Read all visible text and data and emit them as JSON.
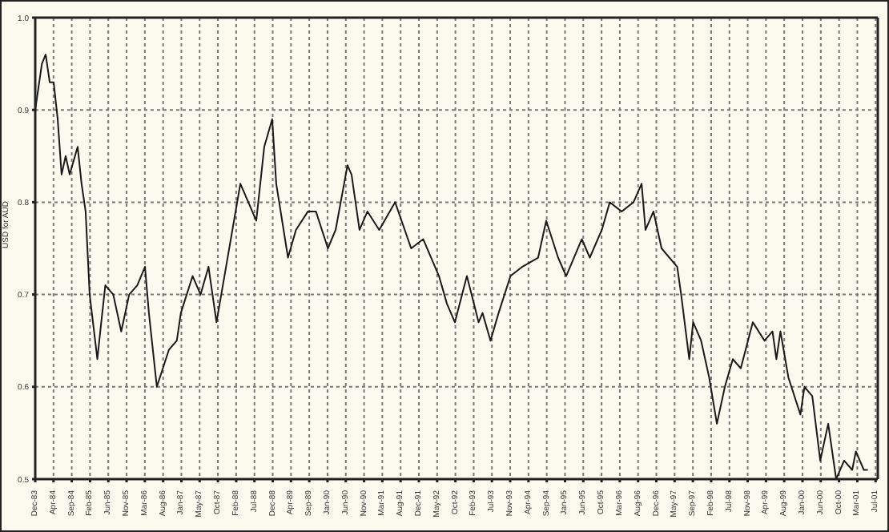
{
  "chart_data": {
    "type": "line",
    "ylabel": "USD for AUD",
    "color": "#1a1a1a",
    "grid": true,
    "legend": false,
    "marker": "none",
    "line_style": "solid",
    "ylim": [
      0.5,
      1.0
    ],
    "yticks": [
      0.5,
      0.6,
      0.7,
      0.8,
      0.9,
      {
        "value": 1.0,
        "label": "1.0"
      }
    ],
    "xlim": [
      "1983-12-12",
      "2001-08-16"
    ],
    "xticks": [
      {
        "value": "1983-12-12",
        "label": "Dec-83"
      },
      {
        "value": "1984-04-30",
        "label": "Apr-84"
      },
      {
        "value": "1984-09-17",
        "label": "Sep-84"
      },
      {
        "value": "1985-02-04",
        "label": "Feb-85"
      },
      {
        "value": "1985-06-24",
        "label": "Jun-85"
      },
      {
        "value": "1985-11-11",
        "label": "Nov-85"
      },
      {
        "value": "1986-03-31",
        "label": "Mar-86"
      },
      {
        "value": "1986-08-18",
        "label": "Aug-86"
      },
      {
        "value": "1987-01-05",
        "label": "Jan-87"
      },
      {
        "value": "1987-05-25",
        "label": "May-87"
      },
      {
        "value": "1987-10-12",
        "label": "Oct-87"
      },
      {
        "value": "1988-02-29",
        "label": "Feb-88"
      },
      {
        "value": "1988-07-18",
        "label": "Jul-88"
      },
      {
        "value": "1988-12-05",
        "label": "Dec-88"
      },
      {
        "value": "1989-04-24",
        "label": "Apr-89"
      },
      {
        "value": "1989-09-11",
        "label": "Sep-89"
      },
      {
        "value": "1990-01-29",
        "label": "Jan-90"
      },
      {
        "value": "1990-06-18",
        "label": "Jun-90"
      },
      {
        "value": "1990-11-05",
        "label": "Nov-90"
      },
      {
        "value": "1991-03-25",
        "label": "Mar-91"
      },
      {
        "value": "1991-08-12",
        "label": "Aug-91"
      },
      {
        "value": "1991-12-30",
        "label": "Dec-91"
      },
      {
        "value": "1992-05-18",
        "label": "May-92"
      },
      {
        "value": "1992-10-05",
        "label": "Oct-92"
      },
      {
        "value": "1993-02-22",
        "label": "Feb-93"
      },
      {
        "value": "1993-07-12",
        "label": "Jul-93"
      },
      {
        "value": "1993-11-29",
        "label": "Nov-93"
      },
      {
        "value": "1994-04-18",
        "label": "Apr-94"
      },
      {
        "value": "1994-09-05",
        "label": "Sep-94"
      },
      {
        "value": "1995-01-23",
        "label": "Jan-95"
      },
      {
        "value": "1995-06-12",
        "label": "Jun-95"
      },
      {
        "value": "1995-10-30",
        "label": "Oct-95"
      },
      {
        "value": "1996-03-18",
        "label": "Mar-96"
      },
      {
        "value": "1996-08-05",
        "label": "Aug-96"
      },
      {
        "value": "1996-12-23",
        "label": "Dec-96"
      },
      {
        "value": "1997-05-12",
        "label": "May-97"
      },
      {
        "value": "1997-09-29",
        "label": "Sep-97"
      },
      {
        "value": "1998-02-16",
        "label": "Feb-98"
      },
      {
        "value": "1998-07-06",
        "label": "Jul-98"
      },
      {
        "value": "1998-11-23",
        "label": "Nov-98"
      },
      {
        "value": "1999-04-12",
        "label": "Apr-99"
      },
      {
        "value": "1999-08-30",
        "label": "Aug-99"
      },
      {
        "value": "2000-01-17",
        "label": "Jan-00"
      },
      {
        "value": "2000-06-05",
        "label": "Jun-00"
      },
      {
        "value": "2000-10-23",
        "label": "Oct-00"
      },
      {
        "value": "2001-03-12",
        "label": "Mar-01"
      },
      {
        "value": "2001-07-30",
        "label": "Jul-01"
      }
    ],
    "x": [
      "1983-12-12",
      "1984-02",
      "1984-03",
      "1984-04",
      "1984-05",
      "1984-06",
      "1984-07",
      "1984-08",
      "1984-09",
      "1984-11",
      "1984-12",
      "1985-01",
      "1985-02",
      "1985-04",
      "1985-05",
      "1985-06",
      "1985-08",
      "1985-10",
      "1985-12",
      "1986-02",
      "1986-04",
      "1986-05",
      "1986-07",
      "1986-10",
      "1986-12",
      "1987-01",
      "1987-04",
      "1987-06",
      "1987-08",
      "1987-10",
      "1987-12",
      "1988-04",
      "1988-06",
      "1988-08",
      "1988-10",
      "1988-12",
      "1989-01",
      "1989-04",
      "1989-06",
      "1989-09",
      "1989-11",
      "1990-02",
      "1990-04",
      "1990-07",
      "1990-08",
      "1990-10",
      "1990-12",
      "1991-03",
      "1991-07",
      "1991-11",
      "1992-02",
      "1992-06",
      "1992-08",
      "1992-10",
      "1993-01",
      "1993-04",
      "1993-05",
      "1993-07",
      "1993-09",
      "1993-12",
      "1994-03",
      "1994-07",
      "1994-09",
      "1994-12",
      "1995-02",
      "1995-06",
      "1995-08",
      "1995-11",
      "1996-01",
      "1996-04",
      "1996-07",
      "1996-09",
      "1996-10",
      "1996-12",
      "1997-02",
      "1997-06",
      "1997-07",
      "1997-09",
      "1997-10",
      "1997-12",
      "1998-02",
      "1998-04",
      "1998-06",
      "1998-08",
      "1998-10",
      "1999-01",
      "1999-04",
      "1999-06",
      "1999-07",
      "1999-08",
      "1999-10",
      "2000-01",
      "2000-02",
      "2000-04",
      "2000-06",
      "2000-08",
      "2000-10",
      "2000-12",
      "2001-02",
      "2001-03",
      "2001-05",
      "2001-06"
    ],
    "values": [
      0.9,
      0.95,
      0.96,
      0.93,
      0.93,
      0.89,
      0.83,
      0.85,
      0.83,
      0.86,
      0.82,
      0.79,
      0.7,
      0.63,
      0.67,
      0.71,
      0.7,
      0.66,
      0.7,
      0.71,
      0.73,
      0.68,
      0.6,
      0.64,
      0.65,
      0.68,
      0.72,
      0.7,
      0.73,
      0.67,
      0.72,
      0.82,
      0.8,
      0.78,
      0.86,
      0.89,
      0.82,
      0.74,
      0.77,
      0.79,
      0.79,
      0.75,
      0.77,
      0.84,
      0.83,
      0.77,
      0.79,
      0.77,
      0.8,
      0.75,
      0.76,
      0.72,
      0.69,
      0.67,
      0.72,
      0.67,
      0.68,
      0.65,
      0.68,
      0.72,
      0.73,
      0.74,
      0.78,
      0.74,
      0.72,
      0.76,
      0.74,
      0.77,
      0.8,
      0.79,
      0.8,
      0.82,
      0.77,
      0.79,
      0.75,
      0.73,
      0.7,
      0.63,
      0.67,
      0.65,
      0.61,
      0.56,
      0.6,
      0.63,
      0.62,
      0.67,
      0.65,
      0.66,
      0.63,
      0.66,
      0.61,
      0.57,
      0.6,
      0.59,
      0.52,
      0.56,
      0.5,
      0.52,
      0.51,
      0.53,
      0.51,
      0.51
    ]
  }
}
